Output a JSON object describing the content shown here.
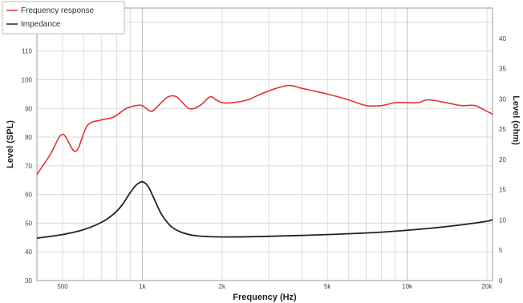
{
  "chart_data": {
    "type": "line",
    "xlabel": "Frequency (Hz)",
    "ylabel": "Level (SPL)",
    "ylabel_right": "Level (ohm)",
    "x_scale": "log",
    "xlim": [
      400,
      21000
    ],
    "ylim": [
      30,
      125
    ],
    "ylim_right": [
      0,
      45
    ],
    "x_tick_values": [
      500,
      1000,
      2000,
      5000,
      10000,
      20000
    ],
    "x_tick_labels": [
      "500",
      "1k",
      "2k",
      "5k",
      "10k",
      "20k"
    ],
    "y_ticks": [
      30,
      40,
      50,
      60,
      70,
      80,
      90,
      100,
      110,
      120
    ],
    "y_ticks_right": [
      0,
      5,
      10,
      15,
      20,
      25,
      30,
      35,
      40
    ],
    "grid": true,
    "legend": "top-left",
    "series": [
      {
        "name": "Frequency response",
        "axis": "left",
        "color": "#e0333a",
        "x": [
          400,
          450,
          500,
          560,
          620,
          700,
          780,
          870,
          950,
          1000,
          1080,
          1150,
          1250,
          1350,
          1500,
          1650,
          1800,
          1900,
          2000,
          2200,
          2500,
          2800,
          3200,
          3600,
          4000,
          4500,
          5000,
          5500,
          6000,
          7000,
          8000,
          9000,
          10000,
          11000,
          12000,
          14000,
          16000,
          18000,
          20000,
          21000
        ],
        "values": [
          67,
          74,
          81,
          75,
          84,
          86,
          87,
          90,
          91,
          91,
          89,
          91,
          94,
          94,
          90,
          91,
          94,
          93,
          92,
          92,
          93,
          95,
          97,
          98,
          97,
          96,
          95,
          94,
          93,
          91,
          91,
          92,
          92,
          92,
          93,
          92,
          91,
          91,
          89,
          88
        ]
      },
      {
        "name": "Impedance",
        "axis": "right",
        "color": "#222222",
        "x": [
          400,
          500,
          600,
          700,
          780,
          840,
          900,
          950,
          1000,
          1050,
          1100,
          1180,
          1280,
          1400,
          1600,
          2000,
          3000,
          5000,
          8000,
          12000,
          16000,
          20000,
          21000
        ],
        "values": [
          7,
          7.6,
          8.4,
          9.6,
          11,
          12.5,
          14.5,
          15.8,
          16.3,
          15.6,
          13.8,
          11,
          9,
          8,
          7.4,
          7.2,
          7.3,
          7.6,
          8.0,
          8.6,
          9.2,
          9.8,
          10.1
        ]
      }
    ]
  }
}
